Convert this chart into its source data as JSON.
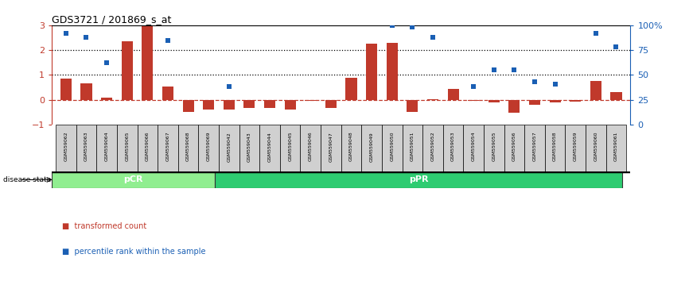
{
  "title": "GDS3721 / 201869_s_at",
  "samples": [
    "GSM559062",
    "GSM559063",
    "GSM559064",
    "GSM559065",
    "GSM559066",
    "GSM559067",
    "GSM559068",
    "GSM559069",
    "GSM559042",
    "GSM559043",
    "GSM559044",
    "GSM559045",
    "GSM559046",
    "GSM559047",
    "GSM559048",
    "GSM559049",
    "GSM559050",
    "GSM559051",
    "GSM559052",
    "GSM559053",
    "GSM559054",
    "GSM559055",
    "GSM559056",
    "GSM559057",
    "GSM559058",
    "GSM559059",
    "GSM559060",
    "GSM559061"
  ],
  "transformed_count": [
    0.85,
    0.65,
    0.1,
    2.35,
    2.95,
    0.55,
    -0.5,
    -0.38,
    -0.38,
    -0.32,
    -0.32,
    -0.38,
    -0.05,
    -0.32,
    0.9,
    2.25,
    2.3,
    -0.5,
    0.02,
    0.45,
    -0.05,
    -0.1,
    -0.52,
    -0.2,
    -0.1,
    -0.07,
    0.75,
    0.3
  ],
  "percentile_rank": [
    92,
    88,
    62,
    null,
    null,
    85,
    null,
    null,
    38,
    null,
    null,
    null,
    null,
    null,
    null,
    null,
    100,
    98,
    88,
    null,
    38,
    55,
    55,
    43,
    41,
    null,
    92,
    78
  ],
  "pCR_count": 8,
  "pPR_count": 20,
  "bar_color": "#c0392b",
  "dot_color": "#1a5fb4",
  "pCR_fill": "#90ee90",
  "pPR_fill": "#2ecc71",
  "ylim": [
    -1,
    3
  ],
  "yticks_left": [
    -1,
    0,
    1,
    2,
    3
  ],
  "yticks_right": [
    0,
    25,
    50,
    75,
    100
  ],
  "bar_width": 0.55
}
